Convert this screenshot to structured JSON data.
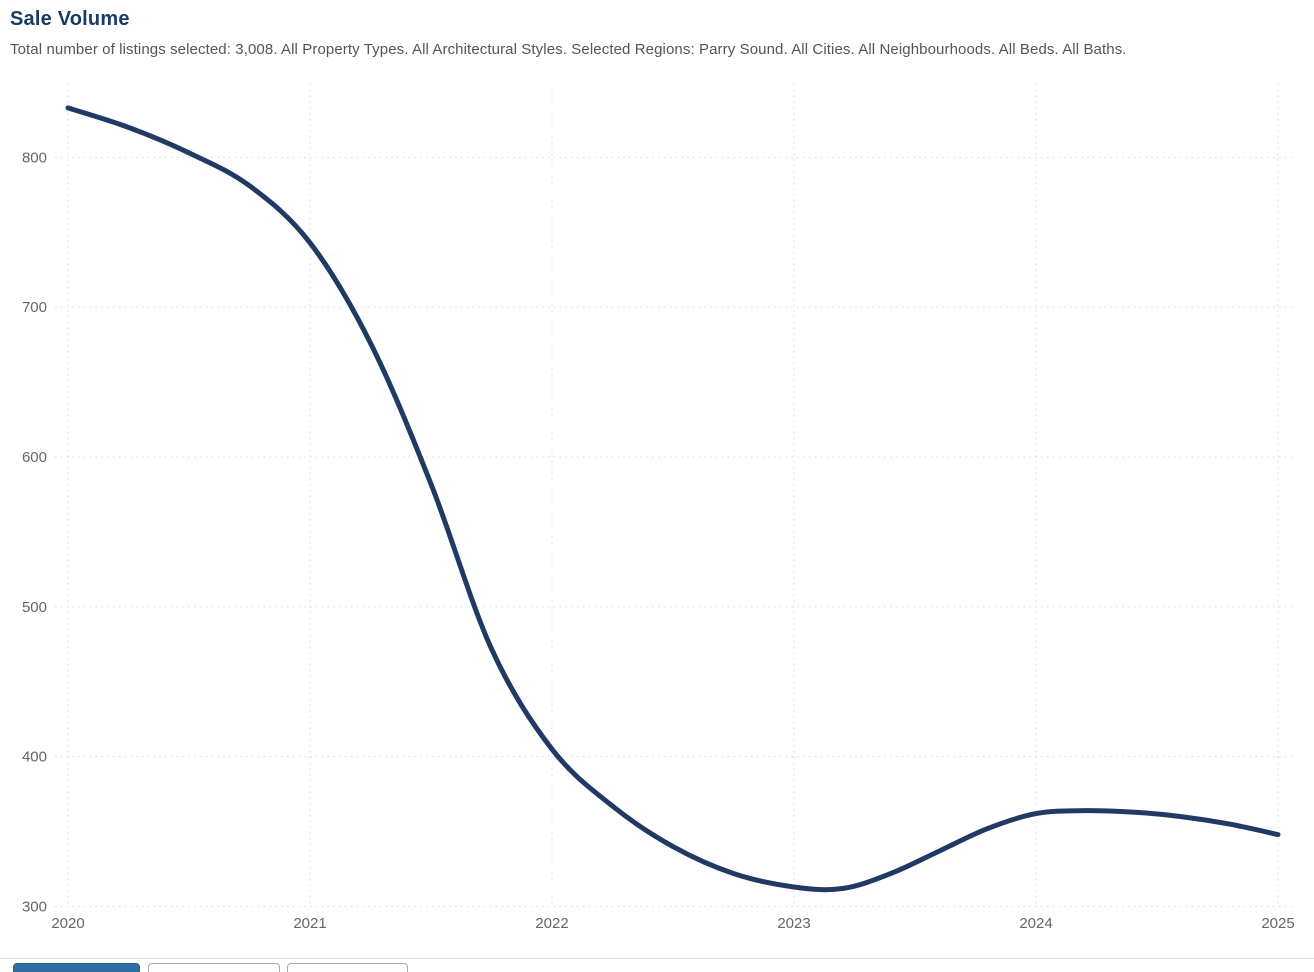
{
  "page": {
    "title": "Sale Volume",
    "subtitle": "Total number of listings selected: 3,008. All Property Types. All Architectural Styles. Selected Regions: Parry Sound. All Cities. All Neighbourhoods. All Beds. All Baths."
  },
  "colors": {
    "title": "#1a3a67",
    "subtitle": "#555555",
    "tick_label": "#666666",
    "grid": "#d9d9d9",
    "line": "#213a64",
    "primary_button": "#2e6da4"
  },
  "chart_data": {
    "type": "line",
    "title": "Sale Volume",
    "xlabel": "",
    "ylabel": "",
    "grid": "dotted",
    "legend": "none",
    "x_ticks": [
      2020,
      2021,
      2022,
      2023,
      2024,
      2025
    ],
    "y_ticks": [
      300,
      400,
      500,
      600,
      700,
      800
    ],
    "xlim": [
      2020,
      2025.07
    ],
    "ylim": [
      300,
      849
    ],
    "line_color": "#213a64",
    "line_width": 5,
    "series": [
      {
        "name": "Sale Volume",
        "x": [
          2020.0,
          2020.25,
          2020.5,
          2020.75,
          2021.0,
          2021.25,
          2021.5,
          2021.75,
          2022.0,
          2022.25,
          2022.5,
          2022.75,
          2023.0,
          2023.2,
          2023.4,
          2023.6,
          2023.8,
          2024.0,
          2024.2,
          2024.4,
          2024.6,
          2024.8,
          2025.0
        ],
        "values": [
          833,
          820,
          803,
          781,
          743,
          676,
          582,
          472,
          405,
          367,
          340,
          322,
          313,
          312,
          322,
          337,
          352,
          362,
          364,
          363,
          360,
          355,
          348
        ]
      }
    ]
  },
  "footer": {
    "buttons": [
      {
        "id": "primary",
        "label": ""
      },
      {
        "id": "default-1",
        "label": ""
      },
      {
        "id": "default-2",
        "label": ""
      }
    ]
  }
}
